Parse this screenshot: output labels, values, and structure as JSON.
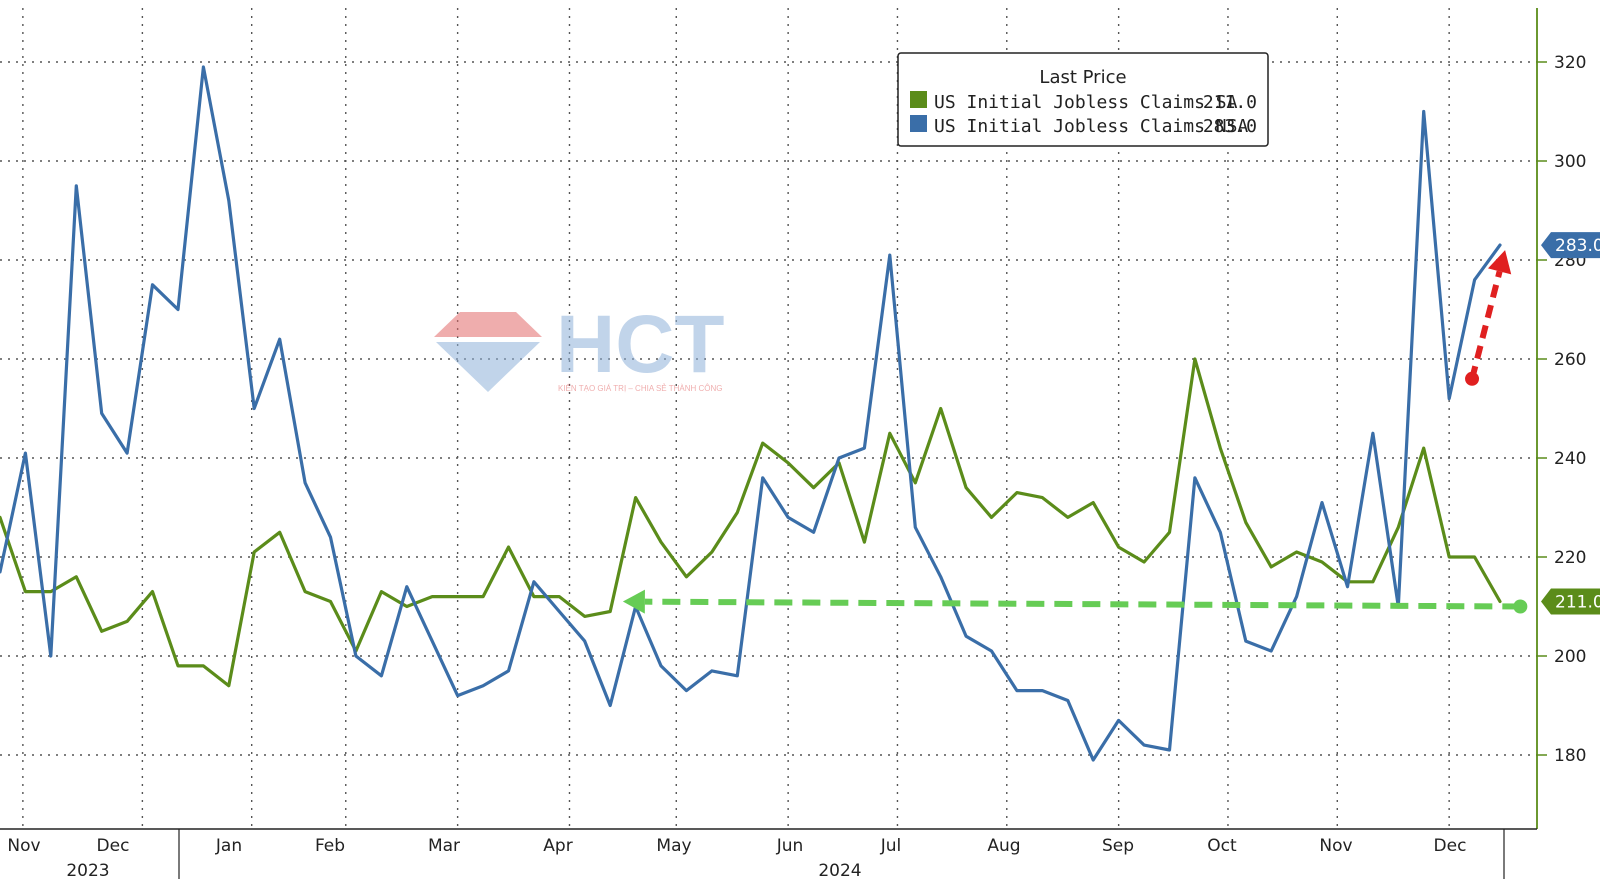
{
  "colors": {
    "sa": "#5b8c1a",
    "nsa": "#3a6ea8",
    "grid": "#555555",
    "axis": "#5b8c1a",
    "arrow_red": "#e02020",
    "arrow_green": "#66cc55",
    "watermark_red": "#e36b6b",
    "watermark_blue": "#8fb2d9"
  },
  "watermark": {
    "text": "HCT",
    "tagline": "KIẾN TẠO GIÁ TRỊ – CHIA SẺ THÀNH CÔNG"
  },
  "chart_data": {
    "type": "line",
    "title": "",
    "xlabel": "",
    "ylabel": "",
    "ylim": [
      165,
      330
    ],
    "y_ticks": [
      180,
      200,
      220,
      240,
      260,
      280,
      300,
      320
    ],
    "grid": true,
    "legend": {
      "placement": "top-right",
      "title": "Last Price",
      "entries": [
        {
          "name": "US Initial Jobless Claims SA",
          "last": "211.0",
          "color": "#5b8c1a"
        },
        {
          "name": "US Initial Jobless Claims NSA",
          "last": "283.0",
          "color": "#3a6ea8"
        }
      ]
    },
    "month_labels": [
      "Nov",
      "Dec",
      "Jan",
      "Feb",
      "Mar",
      "Apr",
      "May",
      "Jun",
      "Jul",
      "Aug",
      "Sep",
      "Oct",
      "Nov",
      "Dec"
    ],
    "year_labels": [
      "2023",
      "2024"
    ],
    "x_weeks": 60,
    "series": [
      {
        "name": "US Initial Jobless Claims SA",
        "values": [
          228,
          213,
          213,
          216,
          205,
          207,
          213,
          198,
          198,
          194,
          221,
          225,
          213,
          211,
          201,
          213,
          210,
          212,
          212,
          212,
          222,
          212,
          212,
          208,
          209,
          232,
          223,
          216,
          221,
          229,
          243,
          239,
          234,
          239,
          223,
          245,
          235,
          250,
          234,
          228,
          233,
          232,
          228,
          231,
          222,
          219,
          225,
          260,
          242,
          227,
          218,
          221,
          219,
          215,
          215,
          226,
          242,
          220,
          220,
          211
        ]
      },
      {
        "name": "US Initial Jobless Claims NSA",
        "values": [
          217,
          241,
          200,
          295,
          249,
          241,
          275,
          270,
          319,
          292,
          250,
          264,
          235,
          224,
          200,
          196,
          214,
          203,
          192,
          194,
          197,
          215,
          209,
          203,
          190,
          210,
          198,
          193,
          197,
          196,
          236,
          228,
          225,
          240,
          242,
          281,
          226,
          216,
          204,
          201,
          193,
          193,
          191,
          179,
          187,
          182,
          181,
          236,
          225,
          203,
          201,
          212,
          231,
          214,
          245,
          210,
          310,
          252,
          276,
          283
        ]
      }
    ],
    "badges": [
      {
        "value": "283.0",
        "series": "US Initial Jobless Claims NSA"
      },
      {
        "value": "211.0",
        "series": "US Initial Jobless Claims SA"
      }
    ],
    "annotations": [
      {
        "type": "dashed-arrow",
        "color": "red",
        "from": {
          "week": 57.9,
          "y": 256
        },
        "to": {
          "week": 59.2,
          "y": 282
        }
      },
      {
        "type": "dashed-arrow",
        "color": "green",
        "from": {
          "week": 59.8,
          "y": 210
        },
        "to": {
          "week": 24.5,
          "y": 211
        }
      }
    ]
  }
}
